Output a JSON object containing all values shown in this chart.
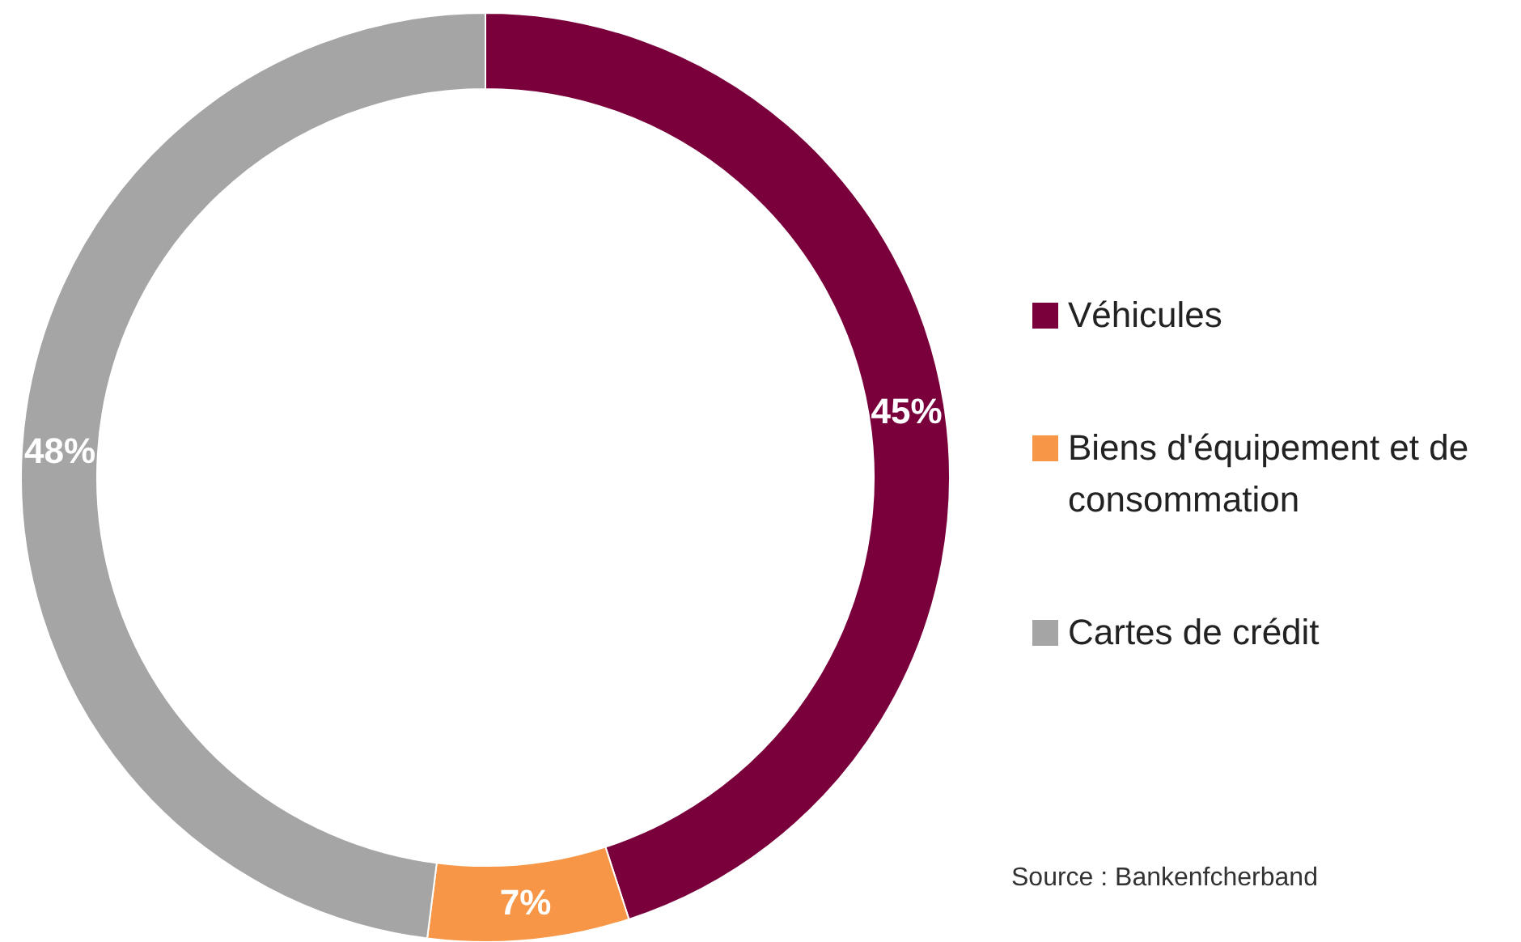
{
  "chart_data": {
    "type": "donut",
    "categories": [
      "Véhicules",
      "Biens d'équipement et de consommation",
      "Cartes de crédit"
    ],
    "values": [
      45,
      7,
      48
    ],
    "colors": [
      "#7a003c",
      "#f79646",
      "#a5a5a5"
    ],
    "value_labels": [
      "45%",
      "7%",
      "48%"
    ],
    "legend": "right",
    "annotations": [
      "Source : Bankenfcherband"
    ]
  }
}
